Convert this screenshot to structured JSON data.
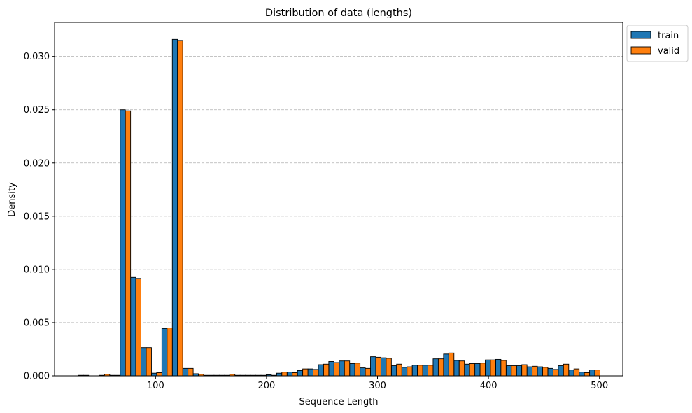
{
  "chart_data": {
    "type": "bar",
    "title": "Distribution of data (lengths)",
    "xlabel": "Sequence Length",
    "ylabel": "Density",
    "xlim": [
      9,
      521
    ],
    "ylim": [
      0,
      0.0332
    ],
    "xticks": [
      100,
      200,
      300,
      400,
      500
    ],
    "yticks": [
      0.0,
      0.005,
      0.01,
      0.015,
      0.02,
      0.025,
      0.03
    ],
    "ytick_labels": [
      "0.000",
      "0.005",
      "0.010",
      "0.015",
      "0.020",
      "0.025",
      "0.030"
    ],
    "grid": "y-dashed",
    "legend_position": "outside-top-right",
    "bin_width": 9.4,
    "x": [
      35.0,
      54.0,
      63.4,
      72.8,
      82.2,
      91.6,
      101.0,
      110.4,
      119.8,
      129.2,
      138.6,
      148.0,
      157.4,
      166.8,
      176.2,
      185.6,
      195.0,
      204.4,
      213.8,
      223.2,
      232.6,
      242.0,
      251.4,
      260.8,
      270.2,
      279.6,
      289.0,
      298.4,
      307.8,
      317.2,
      326.6,
      336.0,
      345.4,
      354.8,
      364.2,
      373.6,
      383.0,
      392.4,
      401.8,
      411.2,
      420.6,
      430.0,
      439.4,
      448.8,
      458.2,
      467.6,
      477.0,
      486.4,
      495.8
    ],
    "series": [
      {
        "name": "train",
        "color": "#1f77b4",
        "values": [
          5e-05,
          5e-05,
          5e-05,
          0.025,
          0.00925,
          0.00265,
          0.00025,
          0.00445,
          0.0316,
          0.0007,
          0.0002,
          5e-05,
          5e-05,
          5e-05,
          5e-05,
          5e-05,
          5e-05,
          0.0001,
          0.00025,
          0.00035,
          0.0005,
          0.00065,
          0.00105,
          0.00135,
          0.0014,
          0.00115,
          0.00075,
          0.0018,
          0.0017,
          0.00095,
          0.0008,
          0.001,
          0.001,
          0.0016,
          0.00205,
          0.00145,
          0.0011,
          0.00115,
          0.0015,
          0.00155,
          0.00095,
          0.00095,
          0.00085,
          0.00085,
          0.0007,
          0.00095,
          0.00055,
          0.00035,
          0.00055
        ]
      },
      {
        "name": "valid",
        "color": "#ff7f0e",
        "values": [
          5e-05,
          0.00015,
          5e-05,
          0.0249,
          0.00915,
          0.00265,
          0.0003,
          0.0045,
          0.0315,
          0.0007,
          0.00015,
          5e-05,
          5e-05,
          0.00015,
          5e-05,
          5e-05,
          5e-05,
          5e-05,
          0.00035,
          0.0003,
          0.00065,
          0.0006,
          0.0011,
          0.00125,
          0.0014,
          0.0012,
          0.0007,
          0.00175,
          0.00165,
          0.0011,
          0.00085,
          0.001,
          0.001,
          0.0016,
          0.00215,
          0.0014,
          0.00115,
          0.0012,
          0.0015,
          0.00145,
          0.00095,
          0.00105,
          0.0009,
          0.0008,
          0.0006,
          0.0011,
          0.00065,
          0.0003,
          0.00055
        ]
      }
    ]
  }
}
